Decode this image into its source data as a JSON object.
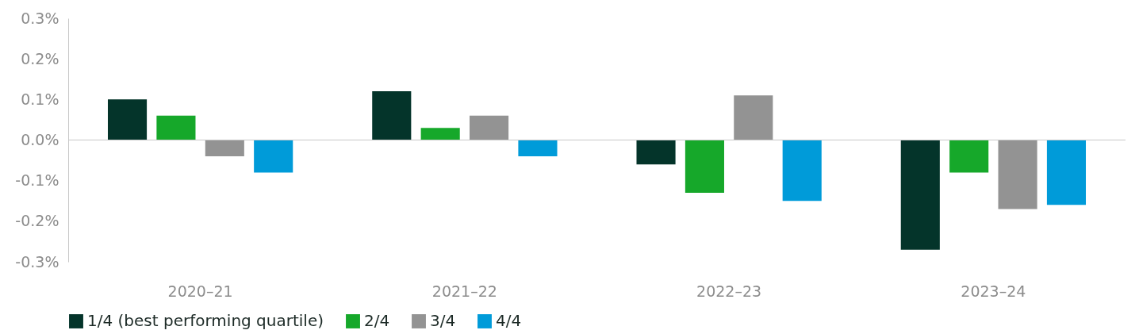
{
  "chart_data": {
    "type": "bar",
    "categories": [
      "2020–21",
      "2021–22",
      "2022–23",
      "2023–24"
    ],
    "series": [
      {
        "name": "1/4 (best performing quartile)",
        "color": "#04342a",
        "values": [
          0.1,
          0.12,
          -0.06,
          -0.27
        ]
      },
      {
        "name": "2/4",
        "color": "#16a82a",
        "values": [
          0.06,
          0.03,
          -0.13,
          -0.08
        ]
      },
      {
        "name": "3/4",
        "color": "#939393",
        "values": [
          -0.04,
          0.06,
          0.11,
          -0.17
        ]
      },
      {
        "name": "4/4",
        "color": "#009bd9",
        "values": [
          -0.08,
          -0.04,
          -0.15,
          -0.16
        ]
      }
    ],
    "ylim": [
      -0.3,
      0.3
    ],
    "yticks": [
      {
        "value": -0.3,
        "label": "-0.3%"
      },
      {
        "value": -0.2,
        "label": "-0.2%"
      },
      {
        "value": -0.1,
        "label": "-0.1%"
      },
      {
        "value": 0,
        "label": "0.0%"
      },
      {
        "value": 0.1,
        "label": "0.1%"
      },
      {
        "value": 0.2,
        "label": "0.2%"
      },
      {
        "value": 0.3,
        "label": "0.3%"
      }
    ],
    "ref_lines": [
      {
        "axis": "y",
        "value": 0,
        "color": "#c8c8c8"
      }
    ],
    "grid": false,
    "legend": "bottom left"
  }
}
